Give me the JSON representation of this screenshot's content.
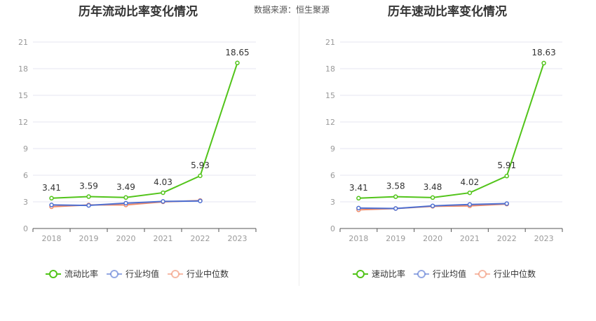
{
  "source_text": "数据来源：恒生聚源",
  "chart_data": [
    {
      "type": "line",
      "title": "历年流动比率变化情况",
      "categories": [
        "2018",
        "2019",
        "2020",
        "2021",
        "2022",
        "2023"
      ],
      "y_ticks": [
        "0",
        "3",
        "6",
        "9",
        "12",
        "15",
        "18",
        "21"
      ],
      "ylim": [
        0,
        21
      ],
      "grid": true,
      "legend_position": "bottom",
      "series": [
        {
          "name": "流动比率",
          "color": "#52c41a",
          "values": [
            3.41,
            3.59,
            3.49,
            4.03,
            5.93,
            18.65
          ],
          "labels": [
            "3.41",
            "3.59",
            "3.49",
            "4.03",
            "5.93",
            "18.65"
          ]
        },
        {
          "name": "行业均值",
          "color": "#4e6fd1",
          "values": [
            2.65,
            2.6,
            2.85,
            3.05,
            3.1,
            null
          ]
        },
        {
          "name": "行业中位数",
          "color": "#f08c6a",
          "values": [
            2.45,
            2.65,
            2.65,
            3.0,
            3.15,
            null
          ]
        }
      ]
    },
    {
      "type": "line",
      "title": "历年速动比率变化情况",
      "categories": [
        "2018",
        "2019",
        "2020",
        "2021",
        "2022",
        "2023"
      ],
      "y_ticks": [
        "0",
        "3",
        "6",
        "9",
        "12",
        "15",
        "18",
        "21"
      ],
      "ylim": [
        0,
        21
      ],
      "grid": true,
      "legend_position": "bottom",
      "series": [
        {
          "name": "速动比率",
          "color": "#52c41a",
          "values": [
            3.41,
            3.58,
            3.48,
            4.02,
            5.91,
            18.63
          ],
          "labels": [
            "3.41",
            "3.58",
            "3.48",
            "4.02",
            "5.91",
            "18.63"
          ]
        },
        {
          "name": "行业均值",
          "color": "#4e6fd1",
          "values": [
            2.3,
            2.25,
            2.55,
            2.7,
            2.8,
            null
          ]
        },
        {
          "name": "行业中位数",
          "color": "#f08c6a",
          "values": [
            2.1,
            2.25,
            2.5,
            2.55,
            2.75,
            null
          ]
        }
      ]
    }
  ]
}
